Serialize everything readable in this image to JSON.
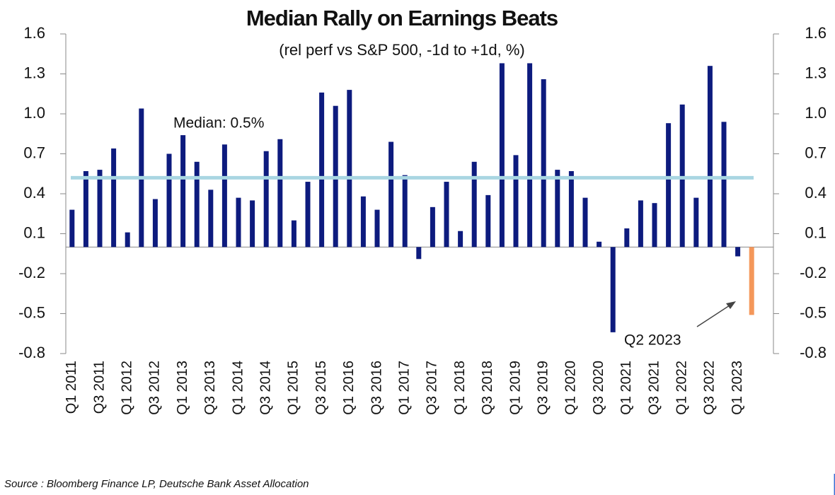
{
  "chart_data": {
    "type": "bar",
    "title": "Median Rally on Earnings Beats",
    "subtitle": "(rel perf vs S&P 500, -1d to +1d, %)",
    "source": "Source : Bloomberg Finance LP, Deutsche Bank Asset Allocation",
    "categories": [
      "Q1 2011",
      null,
      "Q3 2011",
      null,
      "Q1 2012",
      null,
      "Q3 2012",
      null,
      "Q1 2013",
      null,
      "Q3 2013",
      null,
      "Q1 2014",
      null,
      "Q3 2014",
      null,
      "Q1 2015",
      null,
      "Q3 2015",
      null,
      "Q1 2016",
      null,
      "Q3 2016",
      null,
      "Q1 2017",
      null,
      "Q3 2017",
      null,
      "Q1 2018",
      null,
      "Q3 2018",
      null,
      "Q1 2019",
      null,
      "Q3 2019",
      null,
      "Q1 2020",
      null,
      "Q3 2020",
      null,
      "Q1 2021",
      null,
      "Q3 2021",
      null,
      "Q1 2022",
      null,
      "Q3 2022",
      null,
      "Q1 2023",
      null
    ],
    "values": [
      0.28,
      0.57,
      0.58,
      0.74,
      0.11,
      1.04,
      0.36,
      0.7,
      0.84,
      0.64,
      0.43,
      0.77,
      0.37,
      0.35,
      0.72,
      0.81,
      0.2,
      0.49,
      1.16,
      1.06,
      1.18,
      0.38,
      0.28,
      0.79,
      0.54,
      -0.09,
      0.3,
      0.49,
      0.12,
      0.64,
      0.39,
      1.38,
      0.69,
      1.38,
      1.26,
      0.58,
      0.57,
      0.37,
      0.04,
      -0.64,
      0.14,
      0.35,
      0.33,
      0.93,
      1.07,
      0.37,
      1.36,
      0.94,
      -0.07,
      -0.51
    ],
    "color": "#0d1b7e",
    "highlight": {
      "label": "Q2 2023",
      "value": -0.51,
      "color": "#f4975a"
    },
    "median": {
      "label": "Median: 0.5%",
      "value": 0.52,
      "color": "#a9d6e2"
    },
    "ylim": [
      -0.8,
      1.6
    ],
    "yticks": [
      -0.8,
      -0.5,
      -0.2,
      0.1,
      0.4,
      0.7,
      {
        "value": 1,
        "label": "1.0"
      },
      1.3,
      1.6
    ],
    "y2lim": [
      -0.8,
      1.6
    ],
    "y2ticks": [
      -0.8,
      -0.5,
      -0.2,
      0.1,
      0.4,
      0.7,
      {
        "value": 1,
        "label": "1.0"
      },
      1.3,
      1.6
    ]
  }
}
